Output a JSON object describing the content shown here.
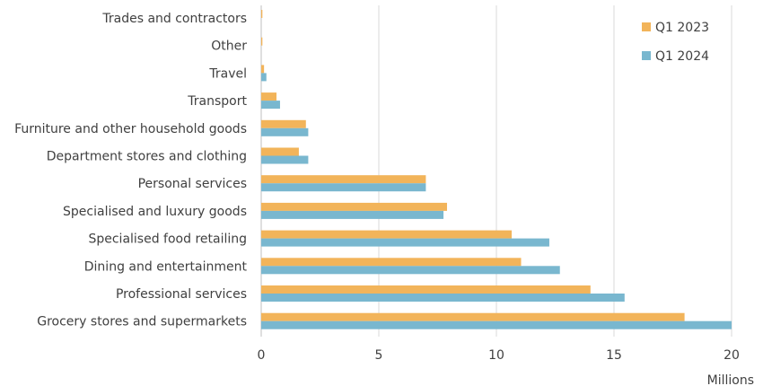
{
  "chart_data": {
    "type": "bar",
    "orientation": "horizontal",
    "categories": [
      "Trades and contractors",
      "Other",
      "Travel",
      "Transport",
      "Furniture and other household goods",
      "Department stores and clothing",
      "Personal services",
      "Specialised and luxury goods",
      "Specialised food retailing",
      "Dining and entertainment",
      "Professional services",
      "Grocery stores and supermarkets"
    ],
    "series": [
      {
        "name": "Q1 2023",
        "color": "#F2B45A",
        "values": [
          0.05,
          0.05,
          0.12,
          0.65,
          1.9,
          1.6,
          7.0,
          7.9,
          10.65,
          11.05,
          14.0,
          18.0
        ]
      },
      {
        "name": "Q1 2024",
        "color": "#79B7CF",
        "values": [
          0.0,
          0.0,
          0.22,
          0.8,
          2.0,
          2.0,
          7.0,
          7.75,
          12.25,
          12.7,
          15.45,
          20.0
        ]
      }
    ],
    "xlim": [
      0,
      20
    ],
    "xticks": [
      0,
      5,
      10,
      15,
      20
    ],
    "xunit": "Millions",
    "grid": true,
    "legend_position": "top-right"
  }
}
